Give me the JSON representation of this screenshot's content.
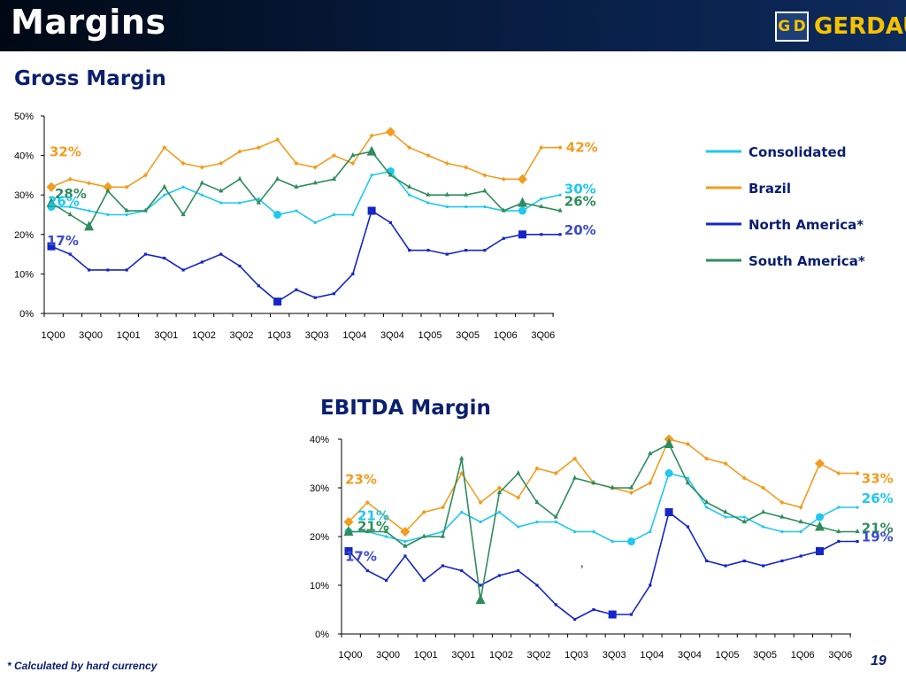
{
  "header": {
    "title": "Margins"
  },
  "logo": {
    "mark": "G D",
    "name": "GERDAU"
  },
  "footnote": "* Calculated by hard currency",
  "page_number": "19",
  "stray_mark": ",",
  "chart_data": [
    {
      "type": "line",
      "title": "Gross Margin",
      "x": [
        "1Q00",
        "2Q00",
        "3Q00",
        "4Q00",
        "1Q01",
        "2Q01",
        "3Q01",
        "4Q01",
        "1Q02",
        "2Q02",
        "3Q02",
        "4Q02",
        "1Q03",
        "2Q03",
        "3Q03",
        "4Q03",
        "1Q04",
        "2Q04",
        "3Q04",
        "4Q04",
        "1Q05",
        "2Q05",
        "3Q05",
        "4Q05",
        "1Q06",
        "2Q06",
        "3Q06",
        "4Q06"
      ],
      "x_tick_labels": [
        "1Q00",
        "3Q00",
        "1Q01",
        "3Q01",
        "1Q02",
        "3Q02",
        "1Q03",
        "3Q03",
        "1Q04",
        "3Q04",
        "1Q05",
        "3Q05",
        "1Q06",
        "3Q06"
      ],
      "y_tick_labels": [
        "0%",
        "10%",
        "20%",
        "30%",
        "40%",
        "50%"
      ],
      "ylim": [
        0,
        50
      ],
      "legend_position": "right",
      "series": [
        {
          "name": "Consolidated",
          "color": "#1ec8f0",
          "marker": "circle",
          "values": [
            27,
            27,
            26,
            25,
            25,
            26,
            30,
            32,
            30,
            28,
            28,
            29,
            25,
            26,
            23,
            25,
            25,
            35,
            36,
            30,
            28,
            27,
            27,
            27,
            26,
            26,
            29,
            30
          ]
        },
        {
          "name": "Brazil",
          "color": "#f39c1e",
          "marker": "diamond",
          "values": [
            32,
            34,
            33,
            32,
            32,
            35,
            42,
            38,
            37,
            38,
            41,
            42,
            44,
            38,
            37,
            40,
            38,
            45,
            46,
            42,
            40,
            38,
            37,
            35,
            34,
            34,
            42,
            42
          ]
        },
        {
          "name": "North America*",
          "color": "#1526c8",
          "marker": "square",
          "values": [
            17,
            15,
            11,
            11,
            11,
            15,
            14,
            11,
            13,
            15,
            12,
            7,
            3,
            6,
            4,
            5,
            10,
            26,
            23,
            16,
            16,
            15,
            16,
            16,
            19,
            20,
            20,
            20
          ]
        },
        {
          "name": "South America*",
          "color": "#2f8c5c",
          "marker": "triangle",
          "values": [
            28,
            25,
            22,
            31,
            26,
            26,
            32,
            25,
            33,
            31,
            34,
            28,
            34,
            32,
            33,
            34,
            40,
            41,
            35,
            32,
            30,
            30,
            30,
            31,
            26,
            28,
            27,
            26
          ]
        }
      ],
      "annotations": [
        {
          "text": "32%",
          "series": "Brazil",
          "color": "#f39c1e"
        },
        {
          "text": "28%",
          "series": "South America*",
          "color": "#2f8c5c"
        },
        {
          "text": "26%",
          "series": "Consolidated",
          "color": "#1ec8f0"
        },
        {
          "text": "17%",
          "series": "North America*",
          "color": "#3a4ccc"
        },
        {
          "text": "42%",
          "series": "Brazil",
          "color": "#f39c1e"
        },
        {
          "text": "30%",
          "series": "Consolidated",
          "color": "#1ec8f0"
        },
        {
          "text": "26%",
          "series": "South America*",
          "color": "#2f8c5c"
        },
        {
          "text": "20%",
          "series": "North America*",
          "color": "#3a4ccc"
        }
      ]
    },
    {
      "type": "line",
      "title": "EBITDA Margin",
      "x": [
        "1Q00",
        "2Q00",
        "3Q00",
        "4Q00",
        "1Q01",
        "2Q01",
        "3Q01",
        "4Q01",
        "1Q02",
        "2Q02",
        "3Q02",
        "4Q02",
        "1Q03",
        "2Q03",
        "3Q03",
        "4Q03",
        "1Q04",
        "2Q04",
        "3Q04",
        "4Q04",
        "1Q05",
        "2Q05",
        "3Q05",
        "4Q05",
        "1Q06",
        "2Q06",
        "3Q06",
        "4Q06"
      ],
      "x_tick_labels": [
        "1Q00",
        "3Q00",
        "1Q01",
        "3Q01",
        "1Q02",
        "3Q02",
        "1Q03",
        "3Q03",
        "1Q04",
        "3Q04",
        "1Q05",
        "3Q05",
        "1Q06",
        "3Q06"
      ],
      "y_tick_labels": [
        "0%",
        "10%",
        "20%",
        "30%",
        "40%"
      ],
      "ylim": [
        0,
        40
      ],
      "series": [
        {
          "name": "Consolidated",
          "color": "#1ec8f0",
          "marker": "circle",
          "values": [
            21,
            21,
            20,
            19,
            20,
            21,
            25,
            23,
            25,
            22,
            23,
            23,
            21,
            21,
            19,
            19,
            21,
            33,
            32,
            26,
            24,
            24,
            22,
            21,
            21,
            24,
            26,
            26
          ]
        },
        {
          "name": "Brazil",
          "color": "#f39c1e",
          "marker": "diamond",
          "values": [
            23,
            27,
            24,
            21,
            25,
            26,
            33,
            27,
            30,
            28,
            34,
            33,
            36,
            31,
            30,
            29,
            31,
            40,
            39,
            36,
            35,
            32,
            30,
            27,
            26,
            35,
            33,
            33
          ]
        },
        {
          "name": "North America*",
          "color": "#1526c8",
          "marker": "square",
          "values": [
            17,
            13,
            11,
            16,
            11,
            14,
            13,
            10,
            12,
            13,
            10,
            6,
            3,
            5,
            4,
            4,
            10,
            25,
            22,
            15,
            14,
            15,
            14,
            15,
            16,
            17,
            19,
            19
          ]
        },
        {
          "name": "South America*",
          "color": "#2f8c5c",
          "marker": "triangle",
          "values": [
            21,
            21,
            21,
            18,
            20,
            20,
            36,
            7,
            29,
            33,
            27,
            24,
            32,
            31,
            30,
            30,
            37,
            39,
            31,
            27,
            25,
            23,
            25,
            24,
            23,
            22,
            21,
            21
          ]
        }
      ],
      "annotations": [
        {
          "text": "23%",
          "series": "Brazil",
          "color": "#f39c1e"
        },
        {
          "text": "21%",
          "series": "Consolidated",
          "color": "#1ec8f0"
        },
        {
          "text": "21%",
          "series": "South America*",
          "color": "#2f8c5c"
        },
        {
          "text": "17%",
          "series": "North America*",
          "color": "#3a4ccc"
        },
        {
          "text": "33%",
          "series": "Brazil",
          "color": "#f39c1e"
        },
        {
          "text": "26%",
          "series": "Consolidated",
          "color": "#1ec8f0"
        },
        {
          "text": "21%",
          "series": "South America*",
          "color": "#2f8c5c"
        },
        {
          "text": "19%",
          "series": "North America*",
          "color": "#3a4ccc"
        }
      ]
    }
  ]
}
